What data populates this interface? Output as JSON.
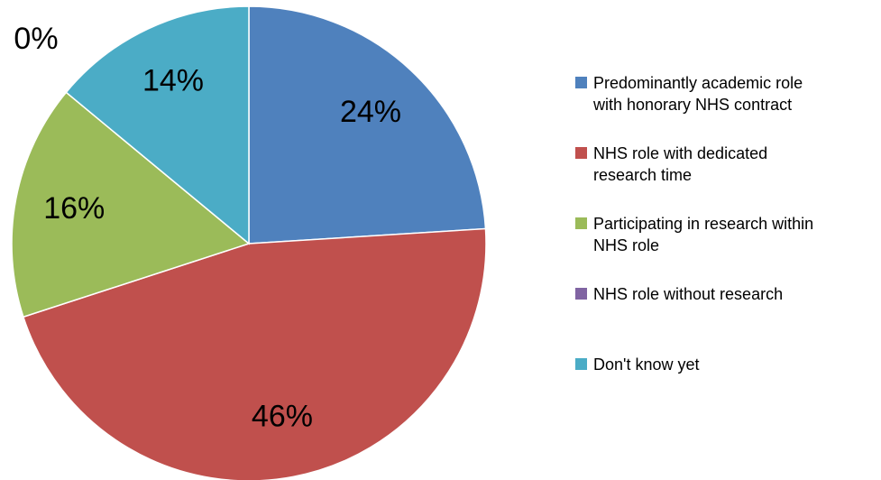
{
  "chart_data": {
    "type": "pie",
    "categories": [
      "Predominantly academic role with honorary NHS contract",
      "NHS role with dedicated research time",
      "Participating in research within NHS role",
      "NHS role without research",
      "Don't know yet"
    ],
    "values": [
      24,
      46,
      16,
      0,
      14
    ],
    "value_labels": [
      "24%",
      "46%",
      "16%",
      "0%",
      "14%"
    ],
    "colors": [
      "#4f81bd",
      "#c0504d",
      "#9bbb59",
      "#8064a2",
      "#4bacc6"
    ],
    "legend": "right"
  }
}
